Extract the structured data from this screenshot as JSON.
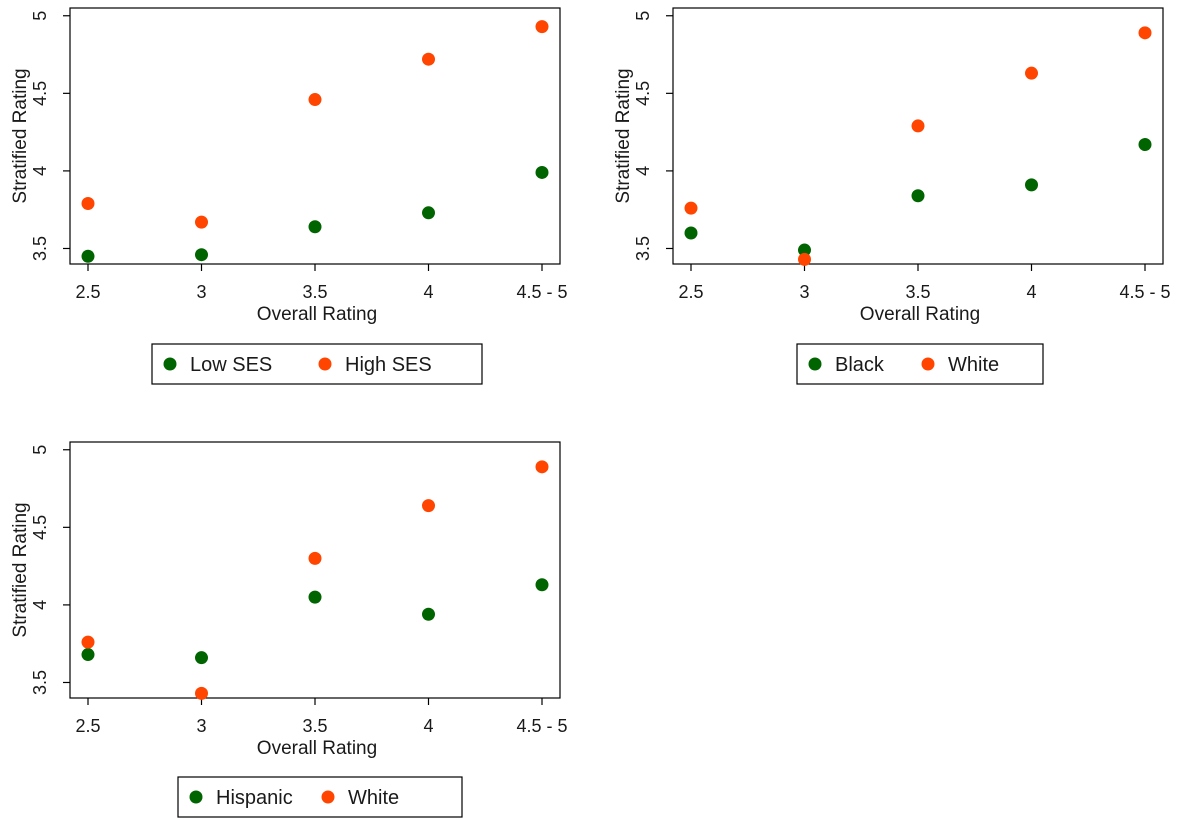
{
  "colors": {
    "series_a": "#006400",
    "series_b": "#ff4500",
    "frame": "#000000"
  },
  "chart_data": [
    {
      "type": "scatter",
      "categories": [
        "2.5",
        "3",
        "3.5",
        "4",
        "4.5 - 5"
      ],
      "xlabel": "Overall Rating",
      "ylabel": "Stratified Rating",
      "ylim": [
        3.4,
        5.05
      ],
      "yticks": [
        "3.5",
        "4",
        "4.5",
        "5"
      ],
      "grid": false,
      "legend_position": "bottom",
      "series": [
        {
          "name": "Low SES",
          "color": "#006400",
          "values": [
            3.45,
            3.46,
            3.64,
            3.73,
            3.99
          ]
        },
        {
          "name": "High SES",
          "color": "#ff4500",
          "values": [
            3.79,
            3.67,
            4.46,
            4.72,
            4.93
          ]
        }
      ]
    },
    {
      "type": "scatter",
      "categories": [
        "2.5",
        "3",
        "3.5",
        "4",
        "4.5 - 5"
      ],
      "xlabel": "Overall Rating",
      "ylabel": "Stratified Rating",
      "ylim": [
        3.4,
        5.05
      ],
      "yticks": [
        "3.5",
        "4",
        "4.5",
        "5"
      ],
      "grid": false,
      "legend_position": "bottom",
      "series": [
        {
          "name": "Black",
          "color": "#006400",
          "values": [
            3.6,
            3.49,
            3.84,
            3.91,
            4.17
          ]
        },
        {
          "name": "White",
          "color": "#ff4500",
          "values": [
            3.76,
            3.43,
            4.29,
            4.63,
            4.89
          ]
        }
      ]
    },
    {
      "type": "scatter",
      "categories": [
        "2.5",
        "3",
        "3.5",
        "4",
        "4.5 - 5"
      ],
      "xlabel": "Overall Rating",
      "ylabel": "Stratified Rating",
      "ylim": [
        3.4,
        5.05
      ],
      "yticks": [
        "3.5",
        "4",
        "4.5",
        "5"
      ],
      "grid": false,
      "legend_position": "bottom",
      "series": [
        {
          "name": "Hispanic",
          "color": "#006400",
          "values": [
            3.68,
            3.66,
            4.05,
            3.94,
            4.13
          ]
        },
        {
          "name": "White",
          "color": "#ff4500",
          "values": [
            3.76,
            3.43,
            4.3,
            4.64,
            4.89
          ]
        }
      ]
    }
  ]
}
